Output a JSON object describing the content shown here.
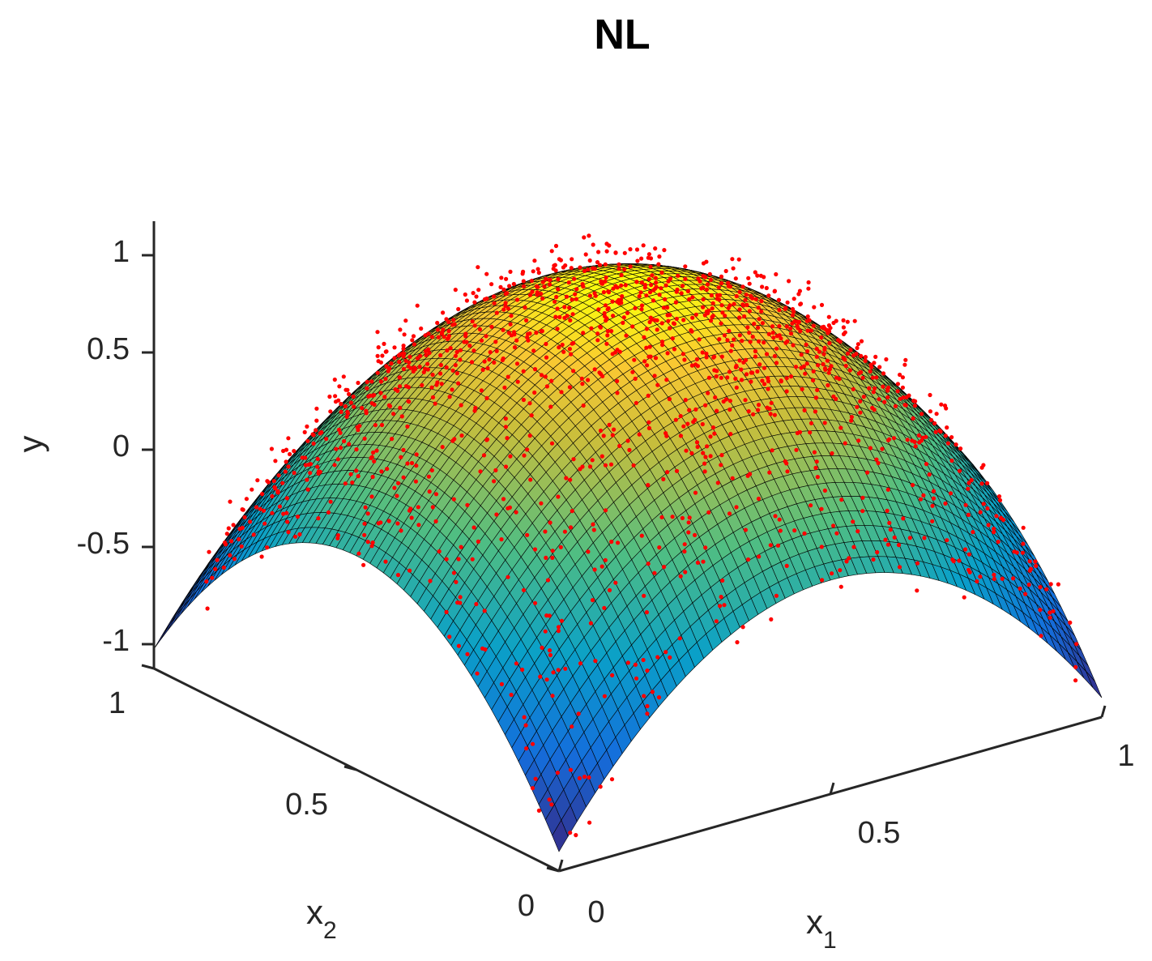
{
  "chart_data": {
    "type": "surface",
    "title": "NL",
    "xlabel": "x",
    "xlabel_sub": "1",
    "ylabel": "x",
    "ylabel_sub": "2",
    "zlabel": "y",
    "x1_range": [
      0,
      1
    ],
    "x2_range": [
      0,
      1
    ],
    "y_range": [
      -1.1,
      1.1
    ],
    "x1_ticks": [
      "0",
      "0.5",
      "1"
    ],
    "x2_ticks": [
      "0",
      "0.5",
      "1"
    ],
    "y_ticks": [
      "-1",
      "-0.5",
      "0",
      "0.5",
      "1"
    ],
    "surface": {
      "description_function": "y = 1 - 2*((x1-0.5)^2 + (x2-0.5)^2) * 2",
      "grid_resolution": 60,
      "colormap": "parula",
      "edge_color": "#000000"
    },
    "scatter": {
      "color": "#ff0000",
      "count": 2000,
      "noise_sd": 0.08
    }
  }
}
